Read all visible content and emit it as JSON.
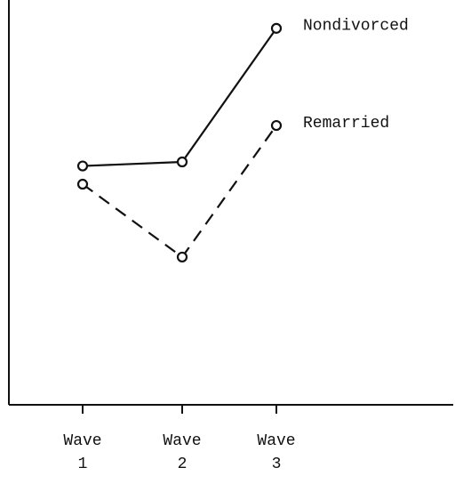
{
  "chart_data": {
    "type": "line",
    "categories": [
      "Wave 1",
      "Wave 2",
      "Wave 3"
    ],
    "series": [
      {
        "name": "Nondivorced",
        "color": "#111111",
        "dash": false,
        "values": [
          59,
          60,
          93
        ]
      },
      {
        "name": "Remarried",
        "color": "#111111",
        "dash": true,
        "values": [
          54.5,
          36.5,
          69
        ]
      }
    ],
    "ylim": [
      0,
      100
    ]
  }
}
